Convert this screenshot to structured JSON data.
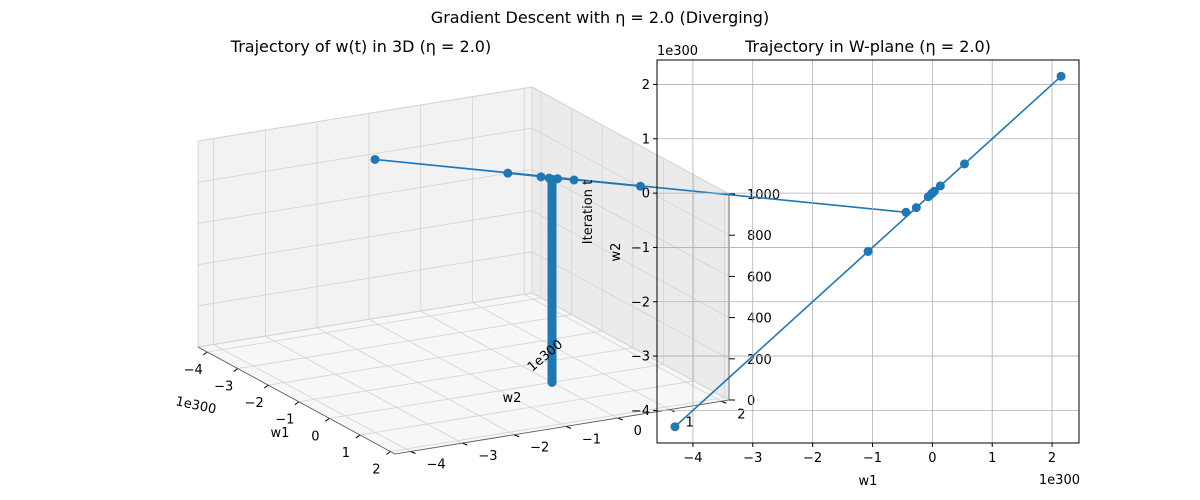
{
  "figure": {
    "title": "Gradient Descent with η = 2.0 (Diverging)"
  },
  "colors": {
    "series": "#1f77b4",
    "grid": "#b0b0b0",
    "pane_face": "#f2f2f2"
  },
  "chart_data": [
    {
      "type": "line3d",
      "title": "Trajectory of w(t) in 3D (η = 2.0)",
      "xlabel": "w1",
      "ylabel": "w2",
      "zlabel": "Iteration t",
      "x_offset_text": "1e300",
      "y_offset_text": "1e300",
      "x_ticks": [
        "−4",
        "−3",
        "−2",
        "−1",
        "0",
        "1",
        "2"
      ],
      "y_ticks": [
        "−4",
        "−3",
        "−2",
        "−1",
        "0",
        "1",
        "2"
      ],
      "z_ticks": [
        "0",
        "200",
        "400",
        "600",
        "800",
        "1000"
      ],
      "xlim": [
        -4.3,
        2.15
      ],
      "ylim": [
        -4.3,
        2.15
      ],
      "zlim": [
        0,
        1000
      ],
      "marker": "o",
      "series": [
        {
          "w1": [
            0,
            0,
            0,
            0,
            0,
            0,
            0,
            0,
            -0.034,
            0.067,
            -0.134,
            0.268,
            -0.537,
            1.074,
            -2.15,
            4.3
          ],
          "w2": [
            0,
            0,
            0,
            0,
            0,
            0,
            0,
            0,
            -0.034,
            0.067,
            -0.134,
            0.268,
            -0.537,
            1.074,
            -2.15,
            4.3
          ],
          "t": [
            0,
            150,
            300,
            450,
            600,
            750,
            900,
            985,
            990,
            991,
            992,
            993,
            994,
            995,
            996,
            997
          ]
        }
      ],
      "grid": true
    },
    {
      "type": "line",
      "title": "Trajectory in W-plane (η = 2.0)",
      "xlabel": "w1",
      "ylabel": "w2",
      "x_offset_text": "1e300",
      "y_offset_text": "1e300",
      "x_ticks": [
        "−4",
        "−3",
        "−2",
        "−1",
        "0",
        "1",
        "2"
      ],
      "y_ticks": [
        "−4",
        "−3",
        "−2",
        "−1",
        "0",
        "1",
        "2"
      ],
      "xlim": [
        -4.6,
        2.45
      ],
      "ylim": [
        -4.6,
        2.45
      ],
      "marker": "o",
      "series": [
        {
          "w1": [
            0,
            -0.017,
            0.033,
            -0.067,
            0.134,
            -0.268,
            0.537,
            -1.074,
            2.15,
            -4.3
          ],
          "w2": [
            0,
            -0.017,
            0.033,
            -0.067,
            0.134,
            -0.268,
            0.537,
            -1.074,
            2.15,
            -4.3
          ]
        }
      ],
      "grid": true
    }
  ]
}
